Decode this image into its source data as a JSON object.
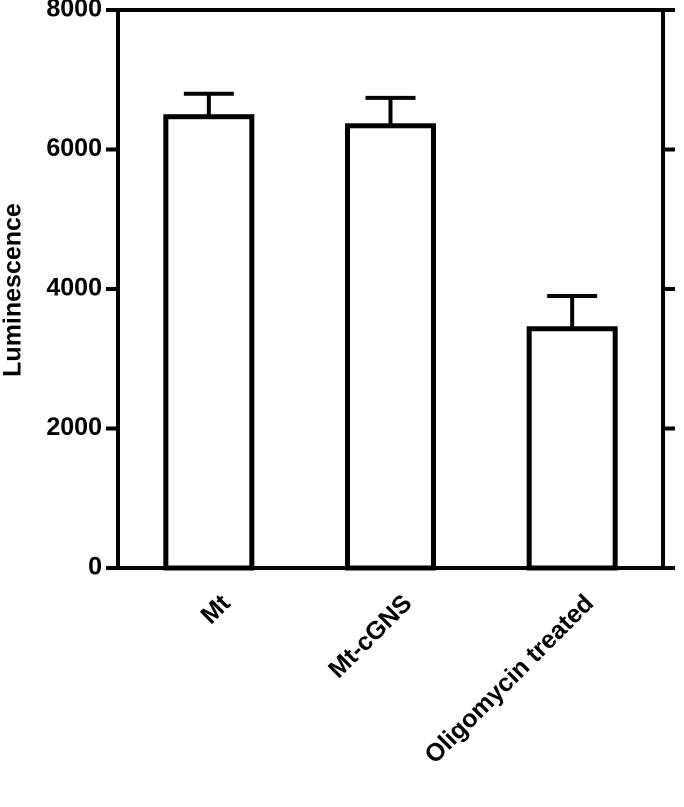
{
  "chart_data": {
    "type": "bar",
    "y_label": "Luminescence",
    "categories": [
      "Mt",
      "Mt-cGNS",
      "Oligomycin treated"
    ],
    "values": [
      6470,
      6340,
      3430
    ],
    "errors": [
      330,
      400,
      470
    ],
    "color": "#ffffff",
    "ylim": [
      0,
      8000
    ],
    "yticks": [
      0,
      2000,
      4000,
      6000,
      8000
    ],
    "grid": false
  }
}
